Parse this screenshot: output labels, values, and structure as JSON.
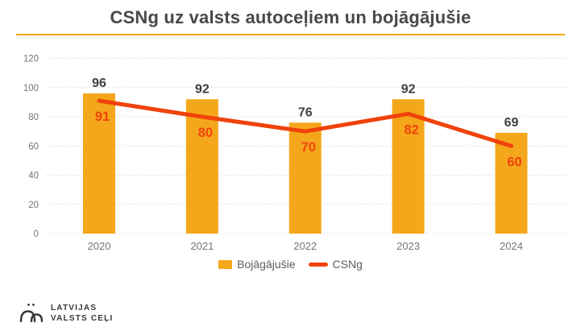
{
  "header": {
    "title": "CSNg uz valsts autoceļiem un bojāgājušie"
  },
  "colors": {
    "accent_yellow": "#F5A71B",
    "accent_red": "#EF430B",
    "title_text": "#46484A",
    "axis_text": "#73767A",
    "bar_label_text": "#3C3F41",
    "gridline": "#D9D9D9",
    "legend_text": "#5A5E63",
    "logo_text": "#34373A"
  },
  "chart_data": {
    "type": "bar",
    "title": "CSNg uz valsts autoceļiem un bojāgājušie",
    "categories": [
      "2020",
      "2021",
      "2022",
      "2023",
      "2024"
    ],
    "series": [
      {
        "name": "Bojāgājušie",
        "type": "bar",
        "color": "#F5A71B",
        "values": [
          96,
          92,
          76,
          92,
          69
        ]
      },
      {
        "name": "CSNg",
        "type": "line",
        "color": "#EF430B",
        "values": [
          91,
          80,
          70,
          82,
          60
        ]
      }
    ],
    "xlabel": "",
    "ylabel": "",
    "ylim": [
      0,
      120
    ],
    "yticks": [
      0,
      20,
      40,
      60,
      80,
      100,
      120
    ],
    "grid": true,
    "legend_position": "bottom"
  },
  "logo": {
    "line1": "LATVIJAS",
    "line2": "VALSTS CEĻI"
  }
}
